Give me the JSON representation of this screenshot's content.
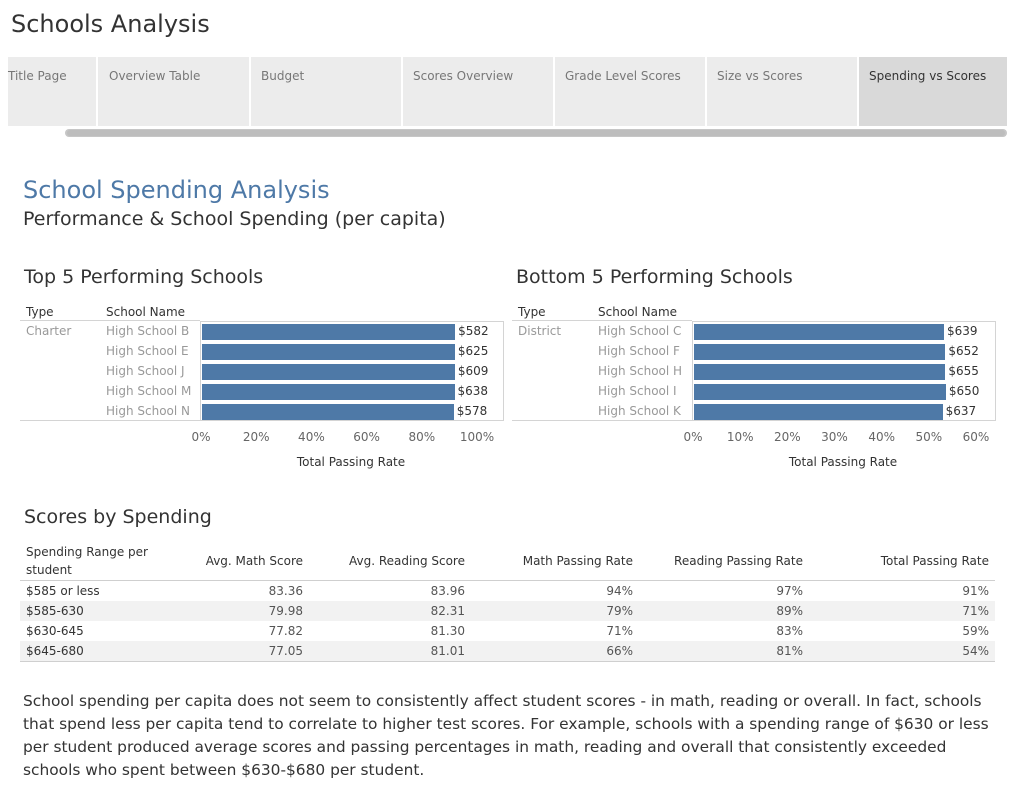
{
  "app": {
    "title": "Schools Analysis"
  },
  "tabs": [
    {
      "label": "Title Page",
      "active": false
    },
    {
      "label": "Overview Table",
      "active": false
    },
    {
      "label": "Budget",
      "active": false
    },
    {
      "label": "Scores Overview",
      "active": false
    },
    {
      "label": "Grade Level Scores",
      "active": false
    },
    {
      "label": "Size vs Scores",
      "active": false
    },
    {
      "label": "Spending vs Scores",
      "active": true
    }
  ],
  "dashboard": {
    "title": "School Spending Analysis",
    "subtitle": "Performance & School Spending (per capita)"
  },
  "top_panel": {
    "title": "Top 5 Performing Schools",
    "col_type": "Type",
    "col_school": "School Name",
    "type_value": "Charter",
    "schools": [
      "High School B",
      "High School E",
      "High School J",
      "High School M",
      "High School N"
    ],
    "axis_title": "Total Passing Rate",
    "ticks": [
      "0%",
      "20%",
      "40%",
      "60%",
      "80%",
      "100%"
    ]
  },
  "bottom_panel": {
    "title": "Bottom 5 Performing Schools",
    "col_type": "Type",
    "col_school": "School Name",
    "type_value": "District",
    "schools": [
      "High School C",
      "High School F",
      "High School H",
      "High School I",
      "High School K"
    ],
    "axis_title": "Total Passing Rate",
    "ticks": [
      "0%",
      "10%",
      "20%",
      "30%",
      "40%",
      "50%",
      "60%"
    ]
  },
  "chart_data": [
    {
      "type": "bar",
      "orientation": "horizontal",
      "title": "Top 5 Performing Schools",
      "categories": [
        "High School B",
        "High School E",
        "High School J",
        "High School M",
        "High School N"
      ],
      "values": [
        0.917,
        0.916,
        0.916,
        0.915,
        0.912
      ],
      "data_labels": [
        "$582",
        "$625",
        "$609",
        "$638",
        "$578"
      ],
      "xlabel": "Total Passing Rate",
      "xlim": [
        0,
        1.0
      ]
    },
    {
      "type": "bar",
      "orientation": "horizontal",
      "title": "Bottom 5 Performing Schools",
      "categories": [
        "High School C",
        "High School F",
        "High School H",
        "High School I",
        "High School K"
      ],
      "values": [
        0.53,
        0.533,
        0.533,
        0.534,
        0.527
      ],
      "data_labels": [
        "$639",
        "$652",
        "$655",
        "$650",
        "$637"
      ],
      "xlabel": "Total Passing Rate",
      "xlim": [
        0,
        0.6
      ]
    }
  ],
  "spending_table": {
    "title": "Scores by Spending",
    "columns": [
      "Spending Range per student",
      "Avg. Math Score",
      "Avg. Reading Score",
      "Math Passing Rate",
      "Reading Passing Rate",
      "Total Passing Rate"
    ],
    "rows": [
      [
        "$585 or less",
        "83.36",
        "83.96",
        "94%",
        "97%",
        "91%"
      ],
      [
        "$585-630",
        "79.98",
        "82.31",
        "79%",
        "89%",
        "71%"
      ],
      [
        "$630-645",
        "77.82",
        "81.30",
        "71%",
        "83%",
        "59%"
      ],
      [
        "$645-680",
        "77.05",
        "81.01",
        "66%",
        "81%",
        "54%"
      ]
    ]
  },
  "description": "School spending per capita does not seem to consistently affect student scores - in math, reading or overall. In fact, schools that spend less per capita tend to correlate to higher test scores. For example, schools with a spending range of $630 or less per student produced average scores and passing percentages in math, reading and overall that consistently exceeded schools who spent between $630-$680 per student."
}
